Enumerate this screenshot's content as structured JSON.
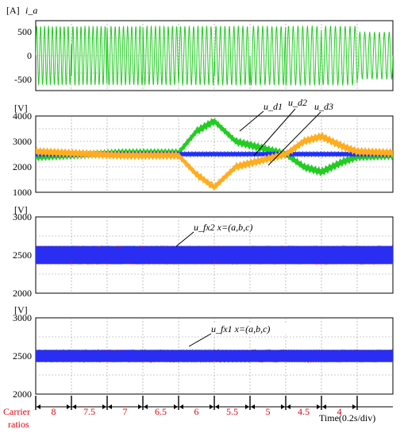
{
  "colors": {
    "green": "#22cc22",
    "blue": "#1f2fff",
    "orange": "#ffad1f",
    "red": "#ee1111",
    "grid": "#9a9a9a",
    "ratio_label": "#e8000b"
  },
  "chart_data": [
    {
      "type": "line",
      "unit_label": "[A]",
      "ylabel": "i_a",
      "ylim": [
        -600,
        600
      ],
      "yticks": [
        "500",
        "0",
        "-500"
      ],
      "series": [
        {
          "color": "green",
          "segments": [
            {
              "t": [
                0,
                4.5
              ],
              "amplitude": 500
            },
            {
              "t": [
                4.5,
                5.0
              ],
              "amplitude": 400
            }
          ]
        }
      ],
      "grid": true
    },
    {
      "type": "line",
      "unit_label": "[V]",
      "ylim": [
        1000,
        4000
      ],
      "yticks": [
        "4000",
        "3000",
        "2000",
        "1000"
      ],
      "annotations": [
        "u_d1",
        "u_d2",
        "u_d3"
      ],
      "series": [
        {
          "name": "u_d1",
          "color": "green",
          "points": [
            [
              0,
              2400
            ],
            [
              1.2,
              2550
            ],
            [
              2.0,
              2550
            ],
            [
              2.25,
              3400
            ],
            [
              2.5,
              3800
            ],
            [
              2.8,
              3000
            ],
            [
              3.5,
              2500
            ],
            [
              3.75,
              2000
            ],
            [
              4.0,
              1800
            ],
            [
              4.3,
              2200
            ],
            [
              4.5,
              2400
            ],
            [
              5.0,
              2450
            ]
          ]
        },
        {
          "name": "u_d2",
          "color": "blue",
          "points": [
            [
              0,
              2500
            ],
            [
              5.0,
              2500
            ]
          ]
        },
        {
          "name": "u_d3",
          "color": "orange",
          "points": [
            [
              0,
              2600
            ],
            [
              1.2,
              2450
            ],
            [
              2.0,
              2450
            ],
            [
              2.25,
              1700
            ],
            [
              2.5,
              1200
            ],
            [
              2.8,
              2000
            ],
            [
              3.5,
              2500
            ],
            [
              3.75,
              3000
            ],
            [
              4.0,
              3200
            ],
            [
              4.3,
              2800
            ],
            [
              4.5,
              2600
            ],
            [
              5.0,
              2550
            ]
          ]
        }
      ],
      "grid": true
    },
    {
      "type": "line",
      "unit_label": "[V]",
      "ylim": [
        2000,
        3000
      ],
      "yticks": [
        "3000",
        "2500",
        "2000"
      ],
      "annotation": "u_fx2  x=(a,b,c)",
      "series": [
        {
          "name": "a",
          "color": "green",
          "band": [
            2380,
            2620
          ]
        },
        {
          "name": "b",
          "color": "red",
          "band": [
            2380,
            2620
          ]
        },
        {
          "name": "c",
          "color": "blue",
          "band": [
            2380,
            2620
          ]
        }
      ],
      "grid": true
    },
    {
      "type": "line",
      "unit_label": "[V]",
      "ylim": [
        2000,
        3000
      ],
      "yticks": [
        "3000",
        "2500",
        "2000"
      ],
      "annotation": "u_fx1  x=(a,b,c)",
      "series": [
        {
          "name": "a",
          "color": "green",
          "band": [
            2420,
            2580
          ]
        },
        {
          "name": "b",
          "color": "red",
          "band": [
            2420,
            2580
          ]
        },
        {
          "name": "c",
          "color": "blue",
          "band": [
            2420,
            2580
          ]
        }
      ],
      "grid": true
    }
  ],
  "carrier_ratios": {
    "label_line1": "Carrier",
    "label_line2": "ratios",
    "values": [
      "8",
      "7.5",
      "7",
      "6.5",
      "6",
      "5.5",
      "5",
      "4.5",
      "4"
    ],
    "segment_bounds": [
      0,
      0.5,
      1.0,
      1.5,
      2.0,
      2.5,
      3.0,
      3.5,
      4.0,
      4.5
    ],
    "time_label": "Time(0.2s/div)"
  }
}
